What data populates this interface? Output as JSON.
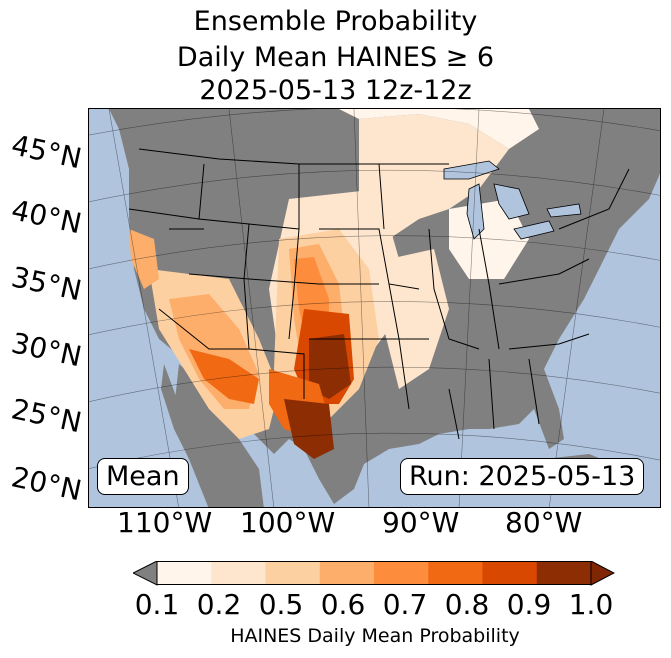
{
  "title": {
    "line1": "Ensemble Probability",
    "line2": "Daily Mean HAINES ≥ 6",
    "line3": "2025-05-13 12z-12z"
  },
  "map": {
    "ocean_color": "#b0c4de",
    "land_color": "#808080",
    "lat_labels": [
      "45°N",
      "40°N",
      "35°N",
      "30°N",
      "25°N",
      "20°N"
    ],
    "lon_labels": [
      "110°W",
      "100°W",
      "90°W",
      "80°W"
    ],
    "left_inset": "Mean",
    "right_inset": "Run: 2025-05-13"
  },
  "colorbar": {
    "ticks": [
      "0.1",
      "0.2",
      "0.5",
      "0.6",
      "0.7",
      "0.8",
      "0.9",
      "1.0"
    ],
    "colors": [
      "#fff5eb",
      "#fee6ce",
      "#fdd0a2",
      "#fdae6b",
      "#fd8d3c",
      "#f16913",
      "#d94801",
      "#8c2d04"
    ],
    "under_color": "#808080",
    "over_color": "#7f2704",
    "label": "HAINES Daily Mean Probability"
  }
}
